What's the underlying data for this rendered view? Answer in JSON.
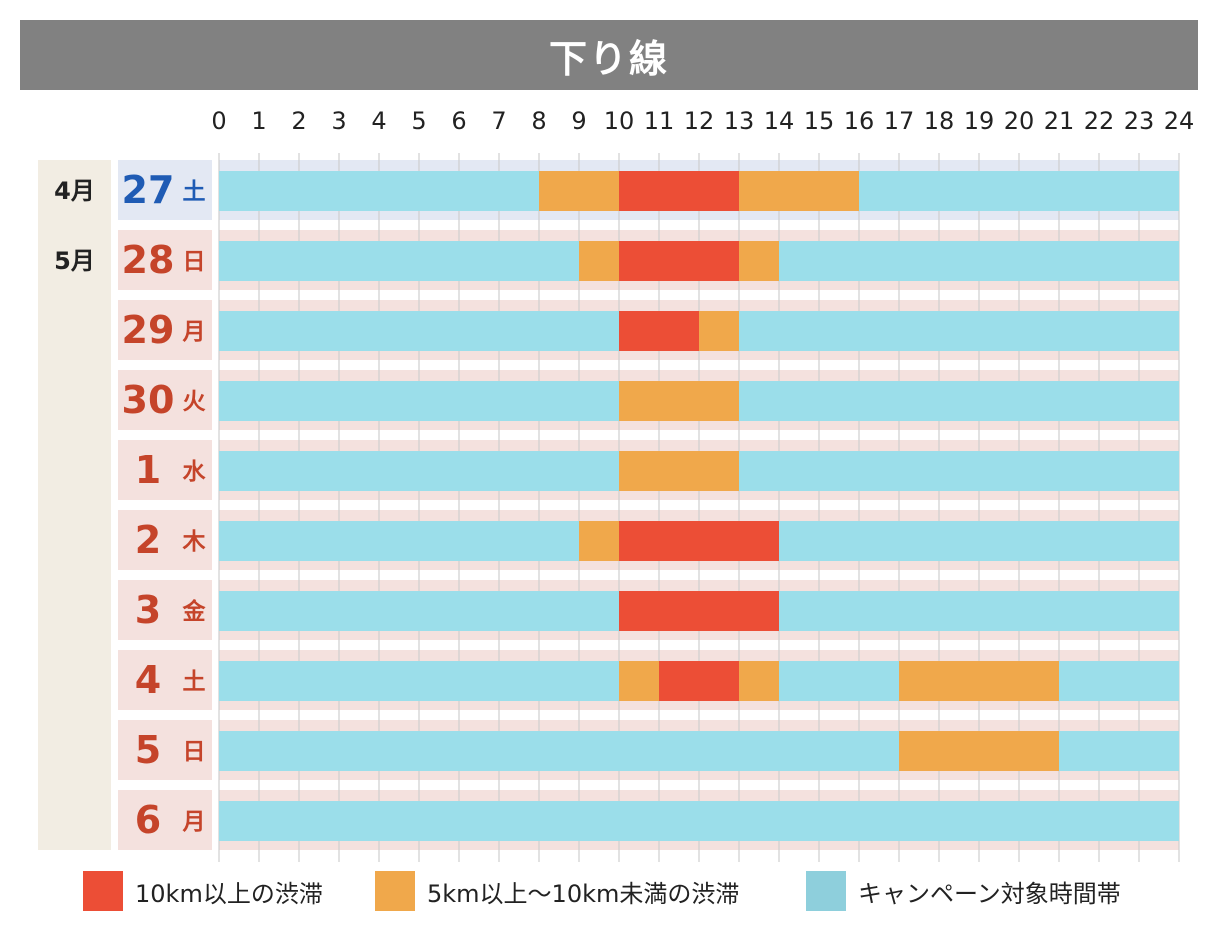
{
  "title": "下り線",
  "colors": {
    "severe": "#ec4e36",
    "moderate": "#f0a84b",
    "campaign": "#9bdeea",
    "campaign_swatch": "#8ecfdc",
    "banner": "#818181",
    "saturday": "#1f5bb4",
    "weekday": "#c5442a"
  },
  "legend": {
    "severe": "10km以上の渋滞",
    "moderate": "5km以上〜10km未満の渋滞",
    "campaign": "キャンペーン対象時間帯"
  },
  "chart_data": {
    "type": "timeline",
    "title": "下り線",
    "x_ticks": [
      "0",
      "1",
      "2",
      "3",
      "4",
      "5",
      "6",
      "7",
      "8",
      "9",
      "10",
      "11",
      "12",
      "13",
      "14",
      "15",
      "16",
      "17",
      "18",
      "19",
      "20",
      "21",
      "22",
      "23",
      "24"
    ],
    "x_range": [
      0,
      24
    ],
    "months": [
      {
        "label": "4月",
        "first_row": 0,
        "last_row": 0
      },
      {
        "label": "5月",
        "first_row": 1,
        "last_row": 9
      }
    ],
    "rows": [
      {
        "day": "27",
        "weekday": "土",
        "kind": "sat",
        "segments": [
          {
            "start": 0,
            "end": 8,
            "level": "campaign"
          },
          {
            "start": 8,
            "end": 10,
            "level": "moderate"
          },
          {
            "start": 10,
            "end": 13,
            "level": "severe"
          },
          {
            "start": 13,
            "end": 16,
            "level": "moderate"
          },
          {
            "start": 16,
            "end": 24,
            "level": "campaign"
          }
        ]
      },
      {
        "day": "28",
        "weekday": "日",
        "kind": "holiday",
        "segments": [
          {
            "start": 0,
            "end": 9,
            "level": "campaign"
          },
          {
            "start": 9,
            "end": 10,
            "level": "moderate"
          },
          {
            "start": 10,
            "end": 13,
            "level": "severe"
          },
          {
            "start": 13,
            "end": 14,
            "level": "moderate"
          },
          {
            "start": 14,
            "end": 24,
            "level": "campaign"
          }
        ]
      },
      {
        "day": "29",
        "weekday": "月",
        "kind": "holiday",
        "segments": [
          {
            "start": 0,
            "end": 10,
            "level": "campaign"
          },
          {
            "start": 10,
            "end": 12,
            "level": "severe"
          },
          {
            "start": 12,
            "end": 13,
            "level": "moderate"
          },
          {
            "start": 13,
            "end": 24,
            "level": "campaign"
          }
        ]
      },
      {
        "day": "30",
        "weekday": "火",
        "kind": "holiday",
        "segments": [
          {
            "start": 0,
            "end": 10,
            "level": "campaign"
          },
          {
            "start": 10,
            "end": 13,
            "level": "moderate"
          },
          {
            "start": 13,
            "end": 24,
            "level": "campaign"
          }
        ]
      },
      {
        "day": "1",
        "weekday": "水",
        "kind": "holiday",
        "segments": [
          {
            "start": 0,
            "end": 10,
            "level": "campaign"
          },
          {
            "start": 10,
            "end": 13,
            "level": "moderate"
          },
          {
            "start": 13,
            "end": 24,
            "level": "campaign"
          }
        ]
      },
      {
        "day": "2",
        "weekday": "木",
        "kind": "holiday",
        "segments": [
          {
            "start": 0,
            "end": 9,
            "level": "campaign"
          },
          {
            "start": 9,
            "end": 10,
            "level": "moderate"
          },
          {
            "start": 10,
            "end": 14,
            "level": "severe"
          },
          {
            "start": 14,
            "end": 24,
            "level": "campaign"
          }
        ]
      },
      {
        "day": "3",
        "weekday": "金",
        "kind": "holiday",
        "segments": [
          {
            "start": 0,
            "end": 10,
            "level": "campaign"
          },
          {
            "start": 10,
            "end": 14,
            "level": "severe"
          },
          {
            "start": 14,
            "end": 24,
            "level": "campaign"
          }
        ]
      },
      {
        "day": "4",
        "weekday": "土",
        "kind": "holiday",
        "segments": [
          {
            "start": 0,
            "end": 10,
            "level": "campaign"
          },
          {
            "start": 10,
            "end": 11,
            "level": "moderate"
          },
          {
            "start": 11,
            "end": 13,
            "level": "severe"
          },
          {
            "start": 13,
            "end": 14,
            "level": "moderate"
          },
          {
            "start": 14,
            "end": 17,
            "level": "campaign"
          },
          {
            "start": 17,
            "end": 21,
            "level": "moderate"
          },
          {
            "start": 21,
            "end": 24,
            "level": "campaign"
          }
        ]
      },
      {
        "day": "5",
        "weekday": "日",
        "kind": "holiday",
        "segments": [
          {
            "start": 0,
            "end": 17,
            "level": "campaign"
          },
          {
            "start": 17,
            "end": 21,
            "level": "moderate"
          },
          {
            "start": 21,
            "end": 24,
            "level": "campaign"
          }
        ]
      },
      {
        "day": "6",
        "weekday": "月",
        "kind": "holiday",
        "segments": [
          {
            "start": 0,
            "end": 24,
            "level": "campaign"
          }
        ]
      }
    ]
  }
}
